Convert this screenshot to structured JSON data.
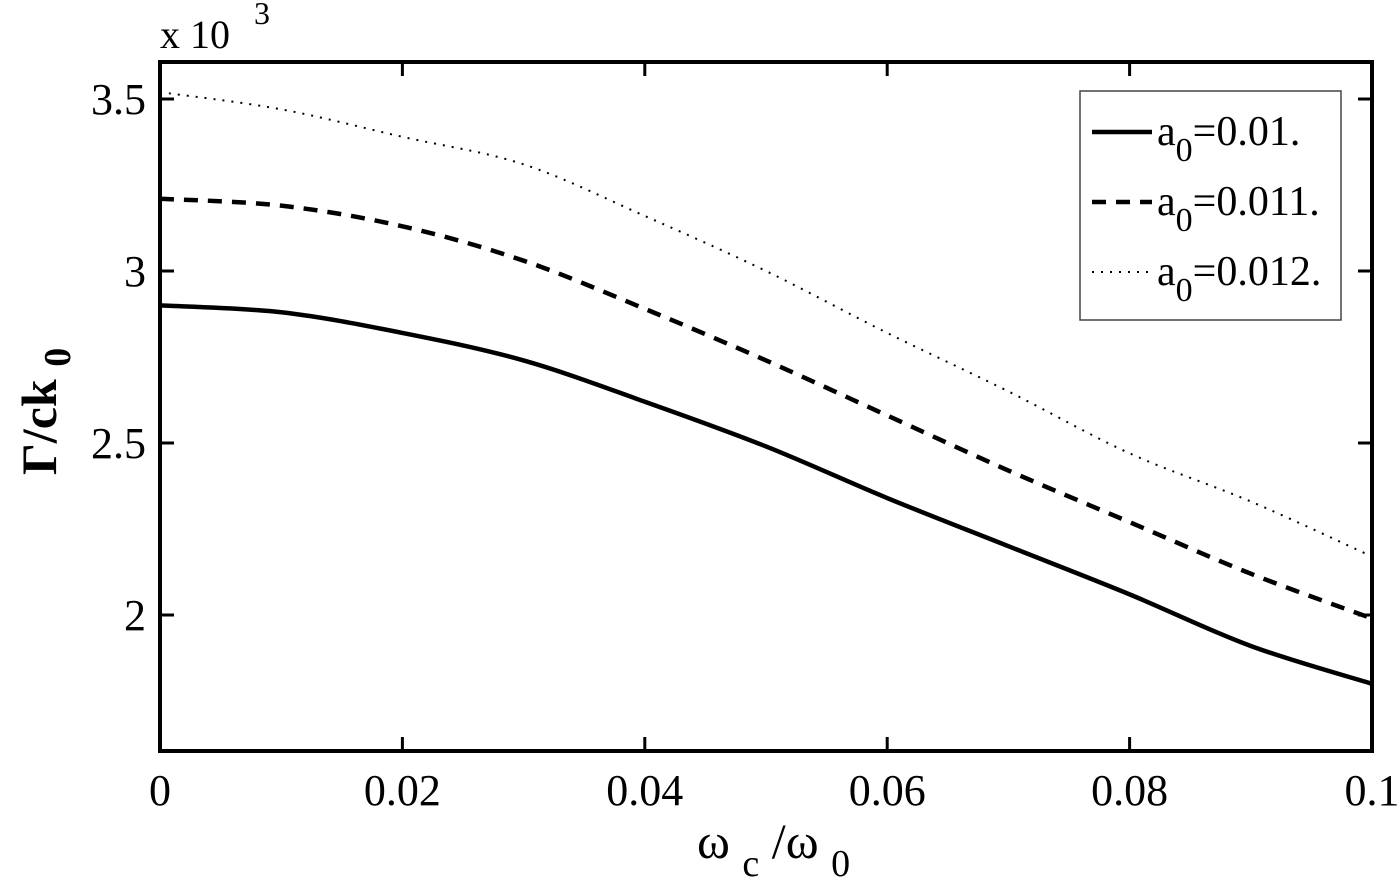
{
  "chart_data": {
    "type": "line",
    "title": "",
    "xlabel": "ω_c/ω_0",
    "ylabel": "Γ/ck_0",
    "y_scale_note": "x 10^3",
    "xlim": [
      0,
      0.1
    ],
    "ylim": [
      1.6,
      3.58
    ],
    "grid": false,
    "legend_position": "upper right",
    "x_ticks": [
      0,
      0.02,
      0.04,
      0.06,
      0.08,
      0.1
    ],
    "x_tick_labels": [
      "0",
      "0.02",
      "0.04",
      "0.06",
      "0.08",
      "0.1"
    ],
    "y_ticks": [
      2,
      2.5,
      3,
      3.5
    ],
    "y_tick_labels": [
      "2",
      "2.5",
      "3",
      "3.5"
    ],
    "x": [
      0,
      0.01,
      0.02,
      0.03,
      0.04,
      0.05,
      0.06,
      0.07,
      0.08,
      0.09,
      0.1
    ],
    "series": [
      {
        "name": "a_0=0.01.",
        "style": "solid",
        "values": [
          2.9,
          2.88,
          2.82,
          2.74,
          2.62,
          2.49,
          2.34,
          2.2,
          2.06,
          1.91,
          1.8
        ]
      },
      {
        "name": "a_0=0.011.",
        "style": "dashed",
        "values": [
          3.21,
          3.19,
          3.13,
          3.03,
          2.89,
          2.74,
          2.58,
          2.42,
          2.27,
          2.12,
          1.99
        ]
      },
      {
        "name": "a_0=0.012.",
        "style": "dotted",
        "values": [
          3.52,
          3.47,
          3.39,
          3.31,
          3.16,
          3.0,
          2.82,
          2.65,
          2.47,
          2.33,
          2.17
        ]
      }
    ]
  },
  "labels": {
    "exponent_prefix": "x 10",
    "exponent_power": "3",
    "ylabel_main": "Γ/ck",
    "ylabel_sub": "0",
    "xlabel_omega_c": "ω",
    "xlabel_c_sub": "c",
    "xlabel_slash": "/ω",
    "xlabel_0_sub": "0"
  },
  "legend": {
    "items": [
      {
        "prefix": "a",
        "sub": "0",
        "suffix": "=0.01.",
        "style": "solid"
      },
      {
        "prefix": "a",
        "sub": "0",
        "suffix": "=0.011.",
        "style": "dashed"
      },
      {
        "prefix": "a",
        "sub": "0",
        "suffix": "=0.012.",
        "style": "dotted"
      }
    ]
  },
  "colors": {
    "line": "#000000",
    "background": "#ffffff",
    "legend_border": "#444444"
  }
}
